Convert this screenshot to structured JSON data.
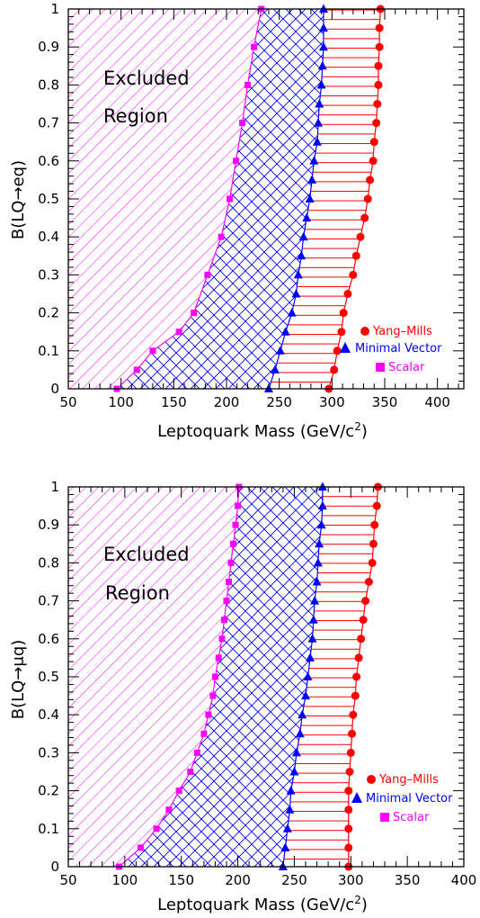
{
  "colors": {
    "scalar": "#ff00ff",
    "minimal_vector": "#0000ff",
    "yang_mills": "#ff0000",
    "axis": "#000000"
  },
  "chart_data": [
    {
      "type": "area",
      "xlabel_main": "Leptoquark Mass (GeV/c",
      "xlabel_sup": "2",
      "xlabel_end": ")",
      "ylabel_prefix": "B(LQ",
      "ylabel_arrow": "→",
      "ylabel_suffix": "eq)",
      "xlim": [
        50,
        425
      ],
      "ylim": [
        0,
        1
      ],
      "x_ticks": [
        "50",
        "100",
        "150",
        "200",
        "250",
        "300",
        "350",
        "400"
      ],
      "y_ticks": [
        "0",
        "0.1",
        "0.2",
        "0.3",
        "0.4",
        "0.5",
        "0.6",
        "0.7",
        "0.8",
        "0.9",
        "1"
      ],
      "annotation": [
        "Excluded",
        "Region"
      ],
      "legend_position": "lower-right",
      "series": [
        {
          "name": "Yang–Mills",
          "color_key": "yang_mills",
          "marker": "circle",
          "hatch": "horizontal",
          "points": [
            [
              297,
              0
            ],
            [
              302,
              0.05
            ],
            [
              305,
              0.1
            ],
            [
              309,
              0.15
            ],
            [
              311,
              0.2
            ],
            [
              315,
              0.25
            ],
            [
              320,
              0.3
            ],
            [
              323,
              0.35
            ],
            [
              327,
              0.4
            ],
            [
              331,
              0.45
            ],
            [
              334,
              0.5
            ],
            [
              336,
              0.55
            ],
            [
              339,
              0.6
            ],
            [
              340,
              0.65
            ],
            [
              342,
              0.7
            ],
            [
              343,
              0.75
            ],
            [
              344,
              0.8
            ],
            [
              344,
              0.85
            ],
            [
              345,
              0.9
            ],
            [
              345,
              0.95
            ],
            [
              346,
              1
            ]
          ]
        },
        {
          "name": "Minimal Vector",
          "color_key": "minimal_vector",
          "marker": "triangle",
          "hatch": "crosshatch",
          "points": [
            [
              240,
              0
            ],
            [
              246,
              0.05
            ],
            [
              251,
              0.1
            ],
            [
              256,
              0.15
            ],
            [
              262,
              0.2
            ],
            [
              266,
              0.25
            ],
            [
              268,
              0.3
            ],
            [
              271,
              0.35
            ],
            [
              273,
              0.4
            ],
            [
              276,
              0.45
            ],
            [
              279,
              0.5
            ],
            [
              281,
              0.55
            ],
            [
              283,
              0.6
            ],
            [
              286,
              0.65
            ],
            [
              287,
              0.7
            ],
            [
              288,
              0.75
            ],
            [
              290,
              0.8
            ],
            [
              291,
              0.85
            ],
            [
              292,
              0.9
            ],
            [
              292,
              0.95
            ],
            [
              292,
              1
            ]
          ]
        },
        {
          "name": "Scalar",
          "color_key": "scalar",
          "marker": "square",
          "hatch": "diagonal",
          "points": [
            [
              96,
              0
            ],
            [
              115,
              0.05
            ],
            [
              130,
              0.1
            ],
            [
              155,
              0.15
            ],
            [
              169,
              0.2
            ],
            [
              182,
              0.3
            ],
            [
              195,
              0.4
            ],
            [
              203,
              0.5
            ],
            [
              209,
              0.6
            ],
            [
              215,
              0.7
            ],
            [
              220,
              0.8
            ],
            [
              226,
              0.9
            ],
            [
              233,
              1
            ]
          ]
        }
      ]
    },
    {
      "type": "area",
      "xlabel_main": "Leptoquark Mass (GeV/c",
      "xlabel_sup": "2",
      "xlabel_end": ")",
      "ylabel_prefix": "B(LQ",
      "ylabel_arrow": "→",
      "ylabel_suffix": "μq)",
      "xlim": [
        50,
        400
      ],
      "ylim": [
        0,
        1
      ],
      "x_ticks": [
        "50",
        "100",
        "150",
        "200",
        "250",
        "300",
        "350",
        "400"
      ],
      "y_ticks": [
        "0",
        "0.1",
        "0.2",
        "0.3",
        "0.4",
        "0.5",
        "0.6",
        "0.7",
        "0.8",
        "0.9",
        "1"
      ],
      "annotation": [
        "Excluded",
        "Region"
      ],
      "legend_position": "lower-right",
      "series": [
        {
          "name": "Yang–Mills",
          "color_key": "yang_mills",
          "marker": "circle",
          "hatch": "horizontal",
          "points": [
            [
              298,
              0
            ],
            [
              298,
              0.05
            ],
            [
              298,
              0.1
            ],
            [
              298,
              0.15
            ],
            [
              298,
              0.2
            ],
            [
              299,
              0.25
            ],
            [
              300,
              0.3
            ],
            [
              301,
              0.35
            ],
            [
              302,
              0.4
            ],
            [
              304,
              0.45
            ],
            [
              305,
              0.5
            ],
            [
              307,
              0.55
            ],
            [
              309,
              0.6
            ],
            [
              311,
              0.65
            ],
            [
              313,
              0.7
            ],
            [
              316,
              0.75
            ],
            [
              319,
              0.8
            ],
            [
              320,
              0.85
            ],
            [
              321,
              0.9
            ],
            [
              323,
              0.95
            ],
            [
              324,
              1
            ]
          ]
        },
        {
          "name": "Minimal Vector",
          "color_key": "minimal_vector",
          "marker": "triangle",
          "hatch": "crosshatch",
          "points": [
            [
              240,
              0
            ],
            [
              242,
              0.05
            ],
            [
              244,
              0.1
            ],
            [
              246,
              0.15
            ],
            [
              247,
              0.2
            ],
            [
              250,
              0.25
            ],
            [
              252,
              0.3
            ],
            [
              255,
              0.35
            ],
            [
              257,
              0.4
            ],
            [
              260,
              0.45
            ],
            [
              262,
              0.5
            ],
            [
              264,
              0.55
            ],
            [
              266,
              0.6
            ],
            [
              267,
              0.65
            ],
            [
              268,
              0.7
            ],
            [
              270,
              0.75
            ],
            [
              271,
              0.8
            ],
            [
              272,
              0.85
            ],
            [
              274,
              0.9
            ],
            [
              275,
              0.95
            ],
            [
              275,
              1
            ]
          ]
        },
        {
          "name": "Scalar",
          "color_key": "scalar",
          "marker": "square",
          "hatch": "diagonal",
          "points": [
            [
              95,
              0
            ],
            [
              114,
              0.05
            ],
            [
              128,
              0.1
            ],
            [
              139,
              0.15
            ],
            [
              148,
              0.2
            ],
            [
              158,
              0.25
            ],
            [
              164,
              0.3
            ],
            [
              170,
              0.35
            ],
            [
              174,
              0.4
            ],
            [
              178,
              0.45
            ],
            [
              180,
              0.5
            ],
            [
              183,
              0.55
            ],
            [
              186,
              0.6
            ],
            [
              188,
              0.65
            ],
            [
              190,
              0.7
            ],
            [
              192,
              0.75
            ],
            [
              194,
              0.8
            ],
            [
              196,
              0.85
            ],
            [
              198,
              0.9
            ],
            [
              200,
              0.95
            ],
            [
              201,
              1
            ]
          ]
        }
      ]
    }
  ]
}
